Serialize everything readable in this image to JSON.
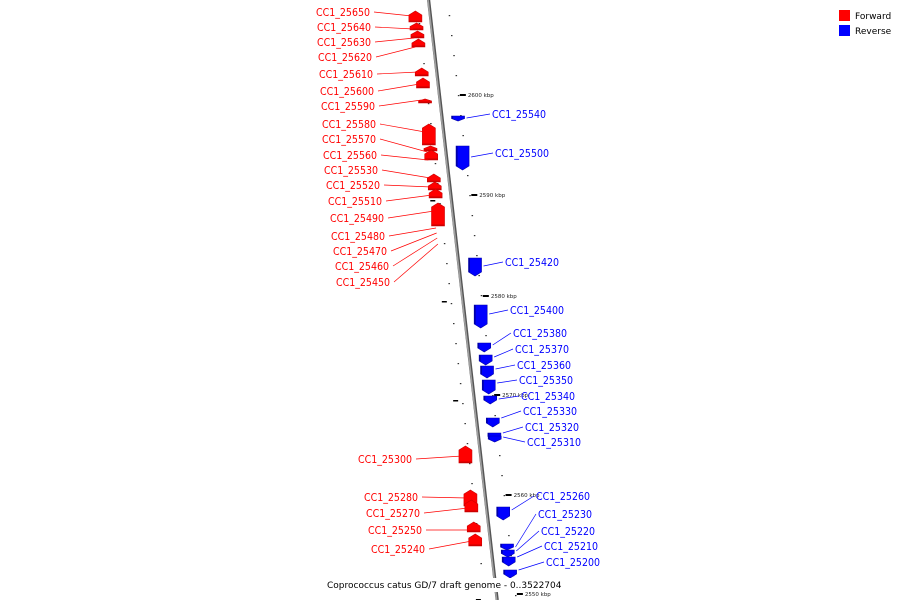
{
  "caption": "Coprococcus catus GD/7 draft genome - 0..3522704",
  "legend": {
    "items": [
      {
        "label": "Forward",
        "color": "#ff0000"
      },
      {
        "label": "Reverse",
        "color": "#0000ff"
      }
    ]
  },
  "colors": {
    "forward": "#ff0000",
    "reverse": "#0000ff",
    "backbone": "#888888",
    "forward_dark": "#cc0000",
    "reverse_dark": "#0000a8"
  },
  "ticks": [
    "2600 kbp",
    "2590 kbp",
    "2580 kbp",
    "2570 kbp",
    "2560 kbp",
    "2550 kbp"
  ],
  "forward_genes": [
    "CC1_25650",
    "CC1_25640",
    "CC1_25630",
    "CC1_25620",
    "CC1_25610",
    "CC1_25600",
    "CC1_25590",
    "CC1_25580",
    "CC1_25570",
    "CC1_25560",
    "CC1_25530",
    "CC1_25520",
    "CC1_25510",
    "CC1_25490",
    "CC1_25480",
    "CC1_25470",
    "CC1_25460",
    "CC1_25450",
    "CC1_25300",
    "CC1_25280",
    "CC1_25270",
    "CC1_25250",
    "CC1_25240"
  ],
  "reverse_genes": [
    "CC1_25540",
    "CC1_25500",
    "CC1_25420",
    "CC1_25400",
    "CC1_25380",
    "CC1_25370",
    "CC1_25360",
    "CC1_25350",
    "CC1_25340",
    "CC1_25330",
    "CC1_25320",
    "CC1_25310",
    "CC1_25260",
    "CC1_25230",
    "CC1_25220",
    "CC1_25210",
    "CC1_25200"
  ]
}
